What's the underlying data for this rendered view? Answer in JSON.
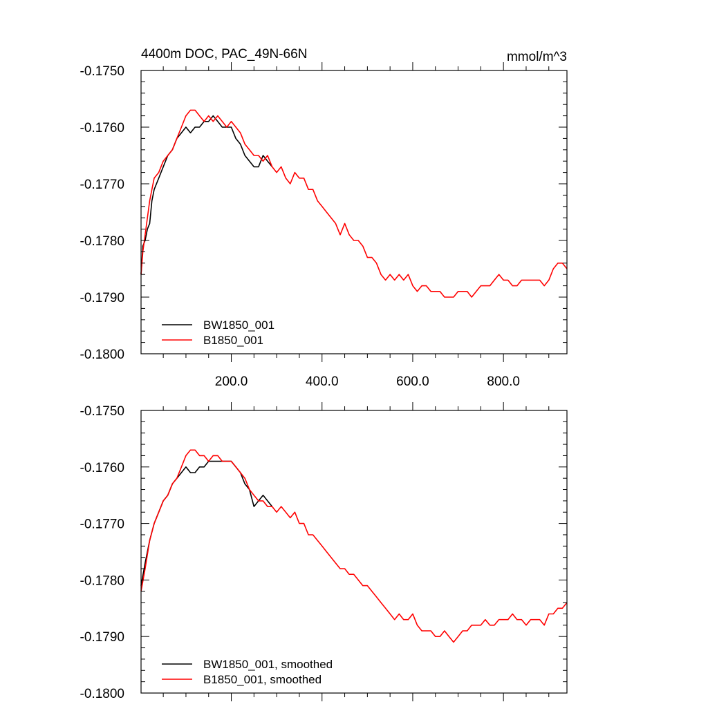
{
  "chart_data": [
    {
      "type": "line",
      "title": "4400m DOC, PAC_49N-66N",
      "units": "mmol/m^3",
      "xlim": [
        1,
        940
      ],
      "ylim": [
        -0.18,
        -0.175
      ],
      "xticks": [
        200,
        400,
        600,
        800
      ],
      "xtick_labels": [
        "200.0",
        "400.0",
        "600.0",
        "800.0"
      ],
      "yticks": [
        -0.18,
        -0.179,
        -0.178,
        -0.177,
        -0.176,
        -0.175
      ],
      "ytick_labels": [
        "-0.1800",
        "-0.1790",
        "-0.1780",
        "-0.1770",
        "-0.1760",
        "-0.1750"
      ],
      "grid": false,
      "legend_position": "bottom-left",
      "series": [
        {
          "name": "BW1850_001",
          "color": "#000000",
          "x": [
            1,
            5,
            10,
            15,
            20,
            25,
            30,
            40,
            50,
            60,
            70,
            80,
            90,
            100,
            110,
            120,
            130,
            140,
            150,
            160,
            170,
            180,
            190,
            200,
            210,
            220,
            230,
            240,
            250,
            260,
            270,
            280,
            290
          ],
          "y": [
            -0.1786,
            -0.1781,
            -0.178,
            -0.1778,
            -0.1777,
            -0.1773,
            -0.1771,
            -0.1769,
            -0.1767,
            -0.1765,
            -0.1764,
            -0.1762,
            -0.1761,
            -0.176,
            -0.1761,
            -0.176,
            -0.176,
            -0.1759,
            -0.1759,
            -0.1758,
            -0.1759,
            -0.176,
            -0.176,
            -0.176,
            -0.1762,
            -0.1763,
            -0.1765,
            -0.1766,
            -0.1767,
            -0.1767,
            -0.1765,
            -0.1766,
            -0.1767
          ]
        },
        {
          "name": "B1850_001",
          "color": "#ff0000",
          "x": [
            1,
            5,
            10,
            15,
            20,
            25,
            30,
            40,
            50,
            60,
            70,
            80,
            90,
            100,
            110,
            120,
            130,
            140,
            150,
            160,
            170,
            180,
            190,
            200,
            210,
            220,
            230,
            240,
            250,
            260,
            270,
            280,
            290,
            300,
            310,
            320,
            330,
            340,
            350,
            360,
            370,
            380,
            390,
            400,
            410,
            420,
            430,
            440,
            450,
            460,
            470,
            480,
            490,
            500,
            510,
            520,
            530,
            540,
            550,
            560,
            570,
            580,
            590,
            600,
            610,
            620,
            630,
            640,
            650,
            660,
            670,
            680,
            690,
            700,
            710,
            720,
            730,
            740,
            750,
            760,
            770,
            780,
            790,
            800,
            810,
            820,
            830,
            840,
            850,
            860,
            870,
            880,
            890,
            900,
            910,
            920,
            930,
            940
          ],
          "y": [
            -0.1786,
            -0.1782,
            -0.1779,
            -0.1776,
            -0.1773,
            -0.1771,
            -0.1769,
            -0.1768,
            -0.1766,
            -0.1765,
            -0.1764,
            -0.1762,
            -0.176,
            -0.1758,
            -0.1757,
            -0.1757,
            -0.1758,
            -0.1759,
            -0.1758,
            -0.1759,
            -0.1758,
            -0.1759,
            -0.176,
            -0.1759,
            -0.176,
            -0.1761,
            -0.1763,
            -0.1764,
            -0.1765,
            -0.1765,
            -0.1766,
            -0.1765,
            -0.1767,
            -0.1768,
            -0.1767,
            -0.1769,
            -0.177,
            -0.1768,
            -0.1769,
            -0.1769,
            -0.1771,
            -0.1771,
            -0.1773,
            -0.1774,
            -0.1775,
            -0.1776,
            -0.1777,
            -0.1779,
            -0.1777,
            -0.1779,
            -0.178,
            -0.178,
            -0.1781,
            -0.1783,
            -0.1783,
            -0.1784,
            -0.1786,
            -0.1787,
            -0.1786,
            -0.1787,
            -0.1786,
            -0.1787,
            -0.1786,
            -0.1788,
            -0.1789,
            -0.1788,
            -0.1788,
            -0.1789,
            -0.1789,
            -0.1789,
            -0.179,
            -0.179,
            -0.179,
            -0.1789,
            -0.1789,
            -0.1789,
            -0.179,
            -0.1789,
            -0.1788,
            -0.1788,
            -0.1788,
            -0.1787,
            -0.1786,
            -0.1787,
            -0.1787,
            -0.1788,
            -0.1788,
            -0.1787,
            -0.1787,
            -0.1787,
            -0.1787,
            -0.1787,
            -0.1788,
            -0.1787,
            -0.1785,
            -0.1784,
            -0.1784,
            -0.1785
          ]
        }
      ]
    },
    {
      "type": "line",
      "xlim": [
        1,
        940
      ],
      "ylim": [
        -0.18,
        -0.175
      ],
      "xticks": [
        200,
        400,
        600,
        800
      ],
      "yticks": [
        -0.18,
        -0.179,
        -0.178,
        -0.177,
        -0.176,
        -0.175
      ],
      "ytick_labels": [
        "-0.1800",
        "-0.1790",
        "-0.1780",
        "-0.1770",
        "-0.1760",
        "-0.1750"
      ],
      "grid": false,
      "legend_position": "bottom-left",
      "series": [
        {
          "name": "BW1850_001, smoothed",
          "color": "#000000",
          "x": [
            1,
            10,
            20,
            30,
            40,
            50,
            60,
            70,
            80,
            90,
            100,
            110,
            120,
            130,
            140,
            150,
            160,
            170,
            180,
            190,
            200,
            210,
            220,
            230,
            240,
            250,
            260,
            270,
            280,
            290
          ],
          "y": [
            -0.1781,
            -0.1777,
            -0.1773,
            -0.177,
            -0.1768,
            -0.1766,
            -0.1765,
            -0.1763,
            -0.1762,
            -0.1761,
            -0.176,
            -0.1761,
            -0.1761,
            -0.176,
            -0.176,
            -0.1759,
            -0.1759,
            -0.1759,
            -0.1759,
            -0.1759,
            -0.1759,
            -0.176,
            -0.1761,
            -0.1763,
            -0.1764,
            -0.1767,
            -0.1766,
            -0.1765,
            -0.1766,
            -0.1767
          ]
        },
        {
          "name": "B1850_001, smoothed",
          "color": "#ff0000",
          "x": [
            1,
            10,
            20,
            30,
            40,
            50,
            60,
            70,
            80,
            90,
            100,
            110,
            120,
            130,
            140,
            150,
            160,
            170,
            180,
            190,
            200,
            210,
            220,
            230,
            240,
            250,
            260,
            270,
            280,
            290,
            300,
            310,
            320,
            330,
            340,
            350,
            360,
            370,
            380,
            390,
            400,
            410,
            420,
            430,
            440,
            450,
            460,
            470,
            480,
            490,
            500,
            510,
            520,
            530,
            540,
            550,
            560,
            570,
            580,
            590,
            600,
            610,
            620,
            630,
            640,
            650,
            660,
            670,
            680,
            690,
            700,
            710,
            720,
            730,
            740,
            750,
            760,
            770,
            780,
            790,
            800,
            810,
            820,
            830,
            840,
            850,
            860,
            870,
            880,
            890,
            900,
            910,
            920,
            930,
            940
          ],
          "y": [
            -0.1782,
            -0.1778,
            -0.1773,
            -0.177,
            -0.1768,
            -0.1766,
            -0.1765,
            -0.1763,
            -0.1762,
            -0.176,
            -0.1758,
            -0.1757,
            -0.1757,
            -0.1758,
            -0.1758,
            -0.1759,
            -0.1758,
            -0.1758,
            -0.1759,
            -0.1759,
            -0.1759,
            -0.176,
            -0.1761,
            -0.1762,
            -0.1764,
            -0.1765,
            -0.1766,
            -0.1766,
            -0.1767,
            -0.1767,
            -0.1768,
            -0.1767,
            -0.1768,
            -0.1769,
            -0.1768,
            -0.177,
            -0.177,
            -0.1772,
            -0.1772,
            -0.1773,
            -0.1774,
            -0.1775,
            -0.1776,
            -0.1777,
            -0.1778,
            -0.1778,
            -0.1779,
            -0.1779,
            -0.178,
            -0.1781,
            -0.1781,
            -0.1782,
            -0.1783,
            -0.1784,
            -0.1785,
            -0.1786,
            -0.1787,
            -0.1786,
            -0.1787,
            -0.1787,
            -0.1786,
            -0.1788,
            -0.1789,
            -0.1789,
            -0.1789,
            -0.179,
            -0.179,
            -0.1789,
            -0.179,
            -0.1791,
            -0.179,
            -0.1789,
            -0.1789,
            -0.1788,
            -0.1788,
            -0.1788,
            -0.1787,
            -0.1788,
            -0.1788,
            -0.1787,
            -0.1787,
            -0.1787,
            -0.1786,
            -0.1787,
            -0.1787,
            -0.1788,
            -0.1787,
            -0.1787,
            -0.1787,
            -0.1788,
            -0.1786,
            -0.1786,
            -0.1785,
            -0.1785,
            -0.1784
          ]
        }
      ]
    }
  ]
}
